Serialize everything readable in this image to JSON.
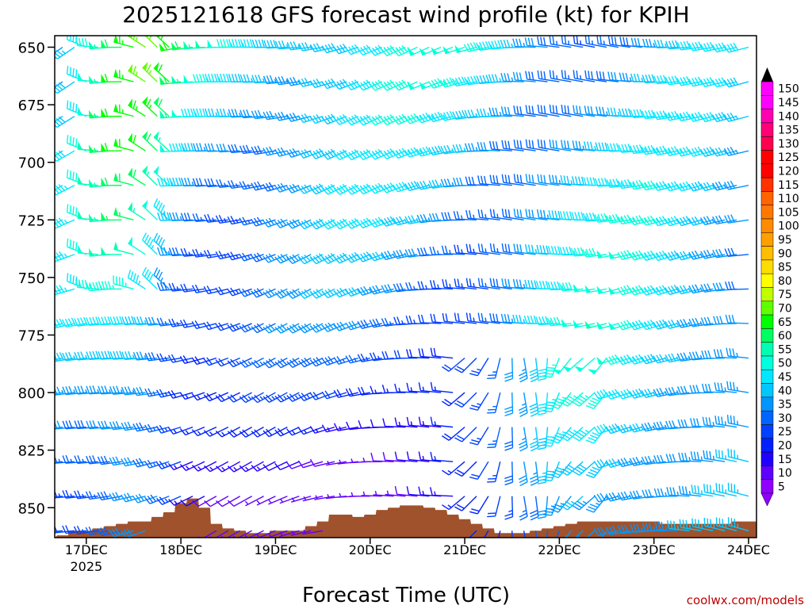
{
  "chart_data": {
    "type": "wind-barbs",
    "title": "2025121618 GFS forecast wind profile (kt) for KPIH",
    "xlabel": "Forecast Time (UTC)",
    "ylabel": "",
    "credit": "coolwx.com/models",
    "x_ticks": [
      {
        "label": "17DEC",
        "sub": "2025"
      },
      {
        "label": "18DEC",
        "sub": ""
      },
      {
        "label": "19DEC",
        "sub": ""
      },
      {
        "label": "20DEC",
        "sub": ""
      },
      {
        "label": "21DEC",
        "sub": ""
      },
      {
        "label": "22DEC",
        "sub": ""
      },
      {
        "label": "23DEC",
        "sub": ""
      },
      {
        "label": "24DEC",
        "sub": ""
      }
    ],
    "x_range_hours": [
      0,
      174
    ],
    "time_step_hours": 3,
    "y_ticks": [
      650,
      675,
      700,
      725,
      750,
      775,
      800,
      825,
      850
    ],
    "y_range_hPa": [
      645,
      863
    ],
    "barb_levels_hPa": [
      650,
      665,
      680,
      695,
      710,
      725,
      740,
      755,
      770,
      785,
      800,
      815,
      830,
      845,
      860
    ],
    "colorbar": {
      "labels": [
        150,
        145,
        140,
        135,
        130,
        125,
        120,
        115,
        110,
        105,
        100,
        95,
        90,
        85,
        80,
        75,
        70,
        65,
        60,
        55,
        50,
        45,
        40,
        35,
        30,
        25,
        20,
        15,
        10,
        5
      ],
      "colors": [
        "#ff00ff",
        "#ff00ff",
        "#ff00b0",
        "#ff0078",
        "#ff0050",
        "#ff0000",
        "#ff0000",
        "#ff3200",
        "#ff6400",
        "#ff7800",
        "#ff8c00",
        "#ffa000",
        "#ffbe00",
        "#ffdc00",
        "#ffff00",
        "#c0ff00",
        "#60ff00",
        "#00ff00",
        "#00ff60",
        "#00ffb0",
        "#00ffdc",
        "#00e8ff",
        "#00c8ff",
        "#0096ff",
        "#0064ff",
        "#0040ff",
        "#0020ff",
        "#2000ff",
        "#6000ff",
        "#9000ff"
      ]
    },
    "terrain_color": "#a0522d",
    "surface_pressure_hPa": [
      862,
      860,
      860,
      859,
      858,
      857,
      856,
      856,
      854,
      852,
      848,
      846,
      850,
      857,
      859,
      860,
      861,
      861,
      860,
      860,
      860,
      858,
      856,
      853,
      853,
      854,
      853,
      851,
      850,
      849,
      849,
      850,
      851,
      853,
      855,
      857,
      859,
      861,
      861,
      861,
      860,
      859,
      858,
      857,
      856,
      856,
      856,
      856,
      856,
      856,
      856,
      857,
      857,
      857,
      857,
      857,
      857,
      856,
      856
    ]
  }
}
